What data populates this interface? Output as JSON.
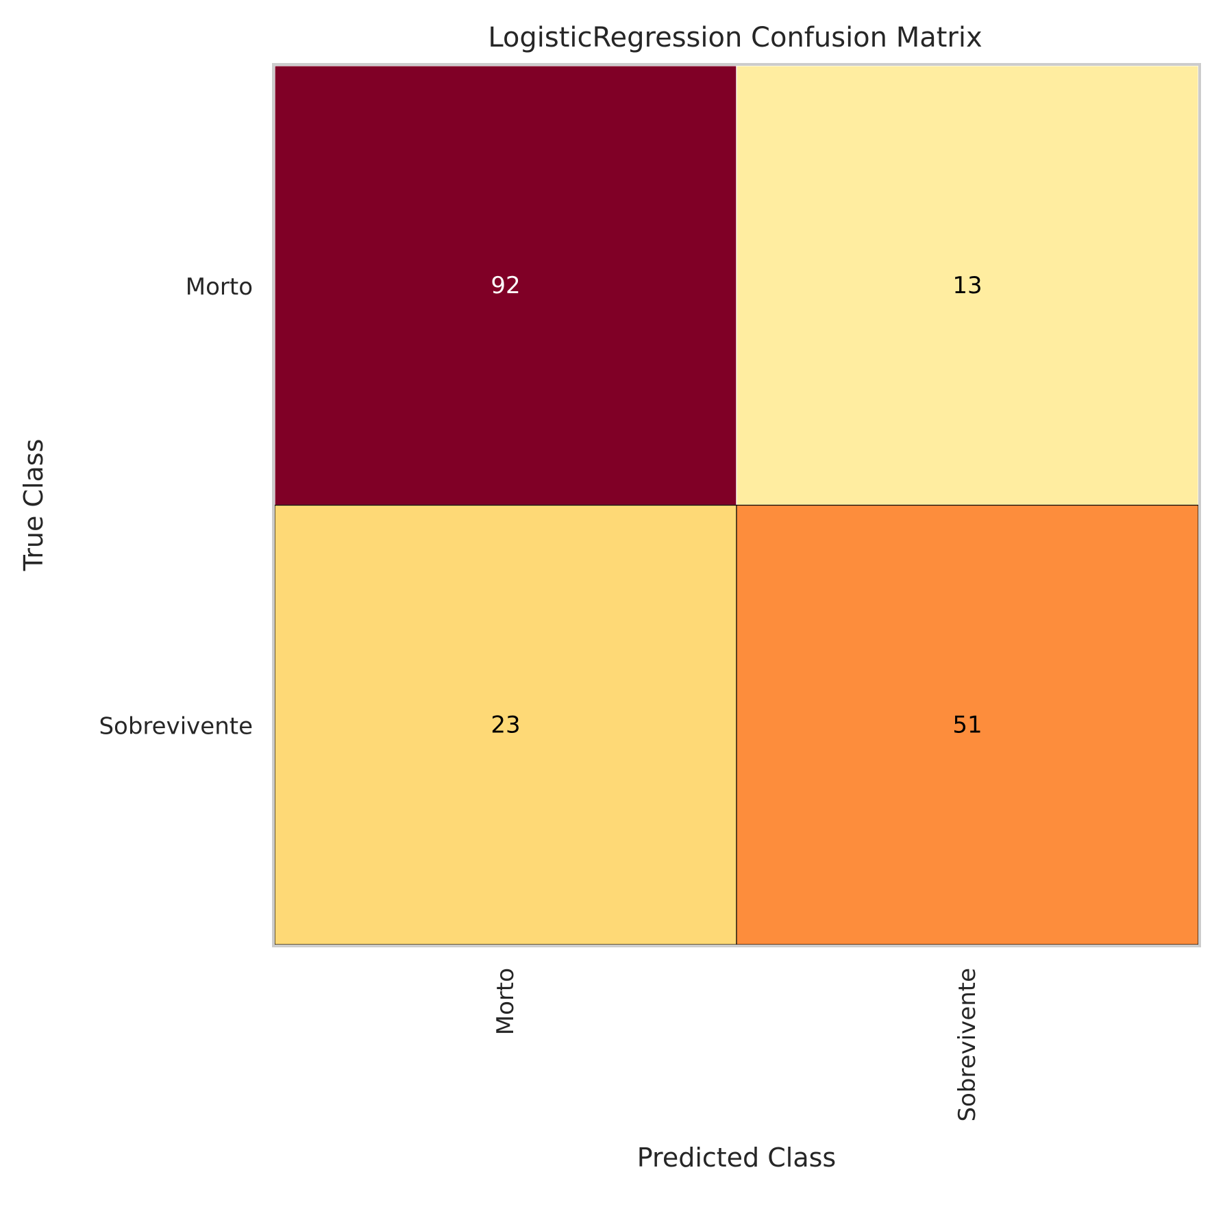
{
  "chart_data": {
    "type": "heatmap",
    "title": "LogisticRegression Confusion Matrix",
    "xlabel": "Predicted Class",
    "ylabel": "True Class",
    "x_categories": [
      "Morto",
      "Sobrevivente"
    ],
    "y_categories": [
      "Morto",
      "Sobrevivente"
    ],
    "matrix": [
      [
        92,
        13
      ],
      [
        23,
        51
      ]
    ],
    "cell_colors": [
      [
        "#800026",
        "#ffeda0"
      ],
      [
        "#fed976",
        "#fd8d3c"
      ]
    ],
    "text_colors": [
      [
        "#ffffff",
        "#000000"
      ],
      [
        "#000000",
        "#000000"
      ]
    ],
    "colormap": "YlOrRd",
    "grid": false
  }
}
